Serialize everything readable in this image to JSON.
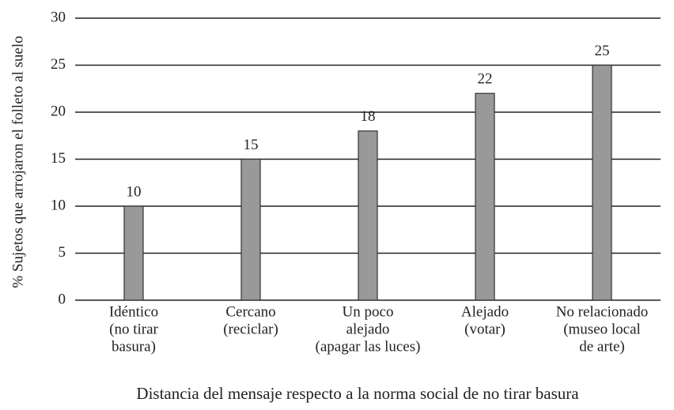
{
  "chart_data": {
    "type": "bar",
    "ylabel": "% Sujetos que arrojaron el folleto al suelo",
    "xlabel": "Distancia del mensaje respecto a la norma social de no tirar basura",
    "categories": [
      [
        "Idéntico",
        "(no tirar",
        "basura)"
      ],
      [
        "Cercano",
        "(reciclar)"
      ],
      [
        "Un poco",
        "alejado",
        "(apagar las luces)"
      ],
      [
        "Alejado",
        "(votar)"
      ],
      [
        "No relacionado",
        "(museo local",
        "de arte)"
      ]
    ],
    "values": [
      10,
      15,
      18,
      22,
      25
    ],
    "color": "#999999",
    "ylim": [
      0,
      30
    ],
    "yticks": [
      0,
      5,
      10,
      15,
      20,
      25,
      30
    ],
    "grid": true
  }
}
